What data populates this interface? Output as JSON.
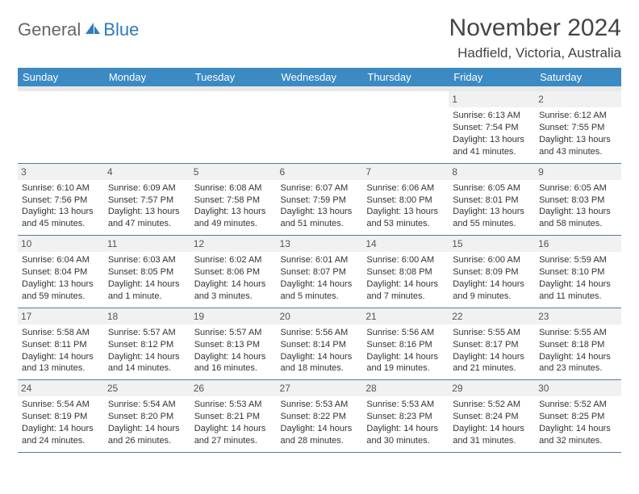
{
  "logo": {
    "part1": "General",
    "part2": "Blue"
  },
  "title": "November 2024",
  "location": "Hadfield, Victoria, Australia",
  "colors": {
    "header_bg": "#3b8ac4",
    "header_text": "#ffffff",
    "subhead_bg": "#e8e8e8",
    "daynum_bg": "#f1f1f1",
    "border": "#5a7a9a",
    "logo_gray": "#666666",
    "logo_blue": "#2f7abf"
  },
  "day_headers": [
    "Sunday",
    "Monday",
    "Tuesday",
    "Wednesday",
    "Thursday",
    "Friday",
    "Saturday"
  ],
  "weeks": [
    [
      {
        "n": "",
        "lines": []
      },
      {
        "n": "",
        "lines": []
      },
      {
        "n": "",
        "lines": []
      },
      {
        "n": "",
        "lines": []
      },
      {
        "n": "",
        "lines": []
      },
      {
        "n": "1",
        "lines": [
          "Sunrise: 6:13 AM",
          "Sunset: 7:54 PM",
          "Daylight: 13 hours",
          "and 41 minutes."
        ]
      },
      {
        "n": "2",
        "lines": [
          "Sunrise: 6:12 AM",
          "Sunset: 7:55 PM",
          "Daylight: 13 hours",
          "and 43 minutes."
        ]
      }
    ],
    [
      {
        "n": "3",
        "lines": [
          "Sunrise: 6:10 AM",
          "Sunset: 7:56 PM",
          "Daylight: 13 hours",
          "and 45 minutes."
        ]
      },
      {
        "n": "4",
        "lines": [
          "Sunrise: 6:09 AM",
          "Sunset: 7:57 PM",
          "Daylight: 13 hours",
          "and 47 minutes."
        ]
      },
      {
        "n": "5",
        "lines": [
          "Sunrise: 6:08 AM",
          "Sunset: 7:58 PM",
          "Daylight: 13 hours",
          "and 49 minutes."
        ]
      },
      {
        "n": "6",
        "lines": [
          "Sunrise: 6:07 AM",
          "Sunset: 7:59 PM",
          "Daylight: 13 hours",
          "and 51 minutes."
        ]
      },
      {
        "n": "7",
        "lines": [
          "Sunrise: 6:06 AM",
          "Sunset: 8:00 PM",
          "Daylight: 13 hours",
          "and 53 minutes."
        ]
      },
      {
        "n": "8",
        "lines": [
          "Sunrise: 6:05 AM",
          "Sunset: 8:01 PM",
          "Daylight: 13 hours",
          "and 55 minutes."
        ]
      },
      {
        "n": "9",
        "lines": [
          "Sunrise: 6:05 AM",
          "Sunset: 8:03 PM",
          "Daylight: 13 hours",
          "and 58 minutes."
        ]
      }
    ],
    [
      {
        "n": "10",
        "lines": [
          "Sunrise: 6:04 AM",
          "Sunset: 8:04 PM",
          "Daylight: 13 hours",
          "and 59 minutes."
        ]
      },
      {
        "n": "11",
        "lines": [
          "Sunrise: 6:03 AM",
          "Sunset: 8:05 PM",
          "Daylight: 14 hours",
          "and 1 minute."
        ]
      },
      {
        "n": "12",
        "lines": [
          "Sunrise: 6:02 AM",
          "Sunset: 8:06 PM",
          "Daylight: 14 hours",
          "and 3 minutes."
        ]
      },
      {
        "n": "13",
        "lines": [
          "Sunrise: 6:01 AM",
          "Sunset: 8:07 PM",
          "Daylight: 14 hours",
          "and 5 minutes."
        ]
      },
      {
        "n": "14",
        "lines": [
          "Sunrise: 6:00 AM",
          "Sunset: 8:08 PM",
          "Daylight: 14 hours",
          "and 7 minutes."
        ]
      },
      {
        "n": "15",
        "lines": [
          "Sunrise: 6:00 AM",
          "Sunset: 8:09 PM",
          "Daylight: 14 hours",
          "and 9 minutes."
        ]
      },
      {
        "n": "16",
        "lines": [
          "Sunrise: 5:59 AM",
          "Sunset: 8:10 PM",
          "Daylight: 14 hours",
          "and 11 minutes."
        ]
      }
    ],
    [
      {
        "n": "17",
        "lines": [
          "Sunrise: 5:58 AM",
          "Sunset: 8:11 PM",
          "Daylight: 14 hours",
          "and 13 minutes."
        ]
      },
      {
        "n": "18",
        "lines": [
          "Sunrise: 5:57 AM",
          "Sunset: 8:12 PM",
          "Daylight: 14 hours",
          "and 14 minutes."
        ]
      },
      {
        "n": "19",
        "lines": [
          "Sunrise: 5:57 AM",
          "Sunset: 8:13 PM",
          "Daylight: 14 hours",
          "and 16 minutes."
        ]
      },
      {
        "n": "20",
        "lines": [
          "Sunrise: 5:56 AM",
          "Sunset: 8:14 PM",
          "Daylight: 14 hours",
          "and 18 minutes."
        ]
      },
      {
        "n": "21",
        "lines": [
          "Sunrise: 5:56 AM",
          "Sunset: 8:16 PM",
          "Daylight: 14 hours",
          "and 19 minutes."
        ]
      },
      {
        "n": "22",
        "lines": [
          "Sunrise: 5:55 AM",
          "Sunset: 8:17 PM",
          "Daylight: 14 hours",
          "and 21 minutes."
        ]
      },
      {
        "n": "23",
        "lines": [
          "Sunrise: 5:55 AM",
          "Sunset: 8:18 PM",
          "Daylight: 14 hours",
          "and 23 minutes."
        ]
      }
    ],
    [
      {
        "n": "24",
        "lines": [
          "Sunrise: 5:54 AM",
          "Sunset: 8:19 PM",
          "Daylight: 14 hours",
          "and 24 minutes."
        ]
      },
      {
        "n": "25",
        "lines": [
          "Sunrise: 5:54 AM",
          "Sunset: 8:20 PM",
          "Daylight: 14 hours",
          "and 26 minutes."
        ]
      },
      {
        "n": "26",
        "lines": [
          "Sunrise: 5:53 AM",
          "Sunset: 8:21 PM",
          "Daylight: 14 hours",
          "and 27 minutes."
        ]
      },
      {
        "n": "27",
        "lines": [
          "Sunrise: 5:53 AM",
          "Sunset: 8:22 PM",
          "Daylight: 14 hours",
          "and 28 minutes."
        ]
      },
      {
        "n": "28",
        "lines": [
          "Sunrise: 5:53 AM",
          "Sunset: 8:23 PM",
          "Daylight: 14 hours",
          "and 30 minutes."
        ]
      },
      {
        "n": "29",
        "lines": [
          "Sunrise: 5:52 AM",
          "Sunset: 8:24 PM",
          "Daylight: 14 hours",
          "and 31 minutes."
        ]
      },
      {
        "n": "30",
        "lines": [
          "Sunrise: 5:52 AM",
          "Sunset: 8:25 PM",
          "Daylight: 14 hours",
          "and 32 minutes."
        ]
      }
    ]
  ]
}
